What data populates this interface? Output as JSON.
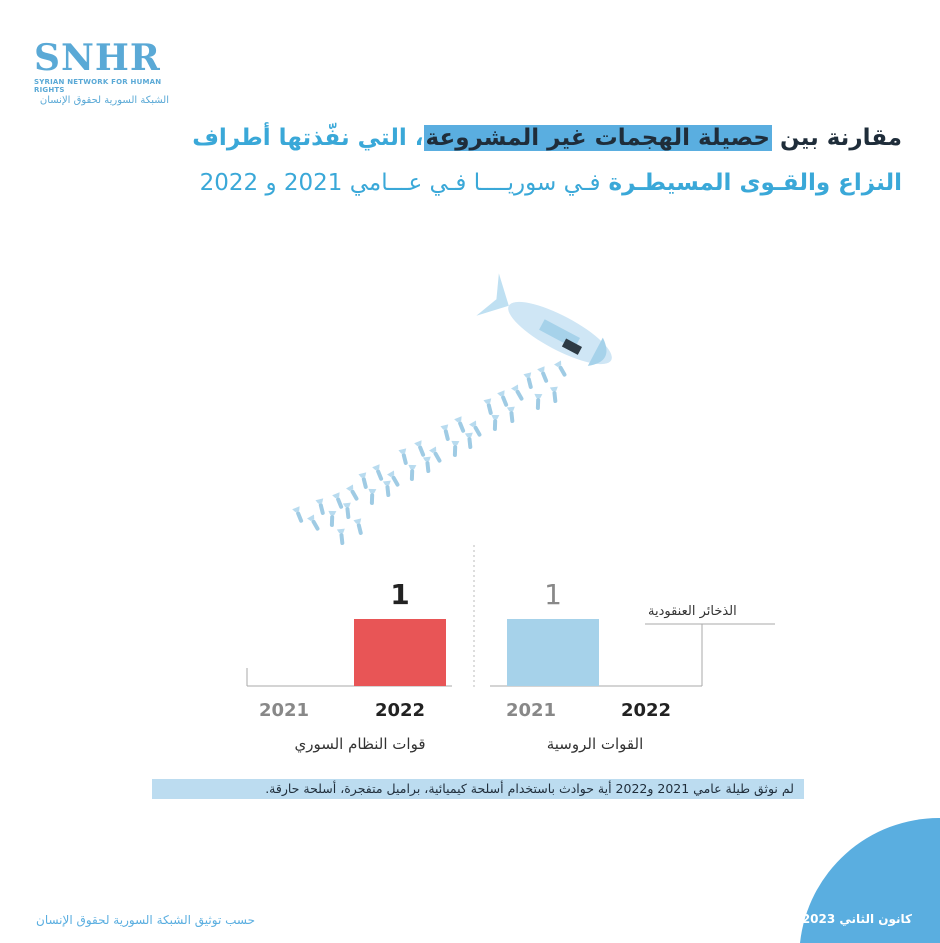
{
  "logo": {
    "mark": "SNHR",
    "en": "SYRIAN NETWORK FOR HUMAN RIGHTS",
    "ar": "الشبكة السورية لحقوق الإنسان"
  },
  "title": {
    "l1_a": "مقارنة بين ",
    "l1_hl": "حصيلة الهجمات غير المشروعة",
    "l1_b": "، التي نفّذتها أطراف",
    "l2_a": "النزاع والقـوى المسيطـرة ",
    "l2_b": "فـي سوريــــا فـي عـــامي 2021 و 2022"
  },
  "chart_data": {
    "type": "bar",
    "series": [
      {
        "name": "الذخائر العنقودية",
        "values": [
          0,
          1,
          1,
          0
        ]
      }
    ],
    "categories": [
      "2021",
      "2022",
      "2021",
      "2022"
    ],
    "groups": [
      {
        "label": "قوات النظام السوري",
        "years": [
          "2021",
          "2022"
        ],
        "values": [
          0,
          1
        ]
      },
      {
        "label": "القوات الروسية",
        "years": [
          "2021",
          "2022"
        ],
        "values": [
          1,
          0
        ]
      }
    ],
    "data_labels": [
      "1",
      "1"
    ],
    "ylim": [
      0,
      1.2
    ],
    "colors": {
      "regime": "#e85556",
      "russia": "#a6d2ea",
      "axis": "#999999"
    }
  },
  "note": "لم نوثق طيلة عامي 2021 و2022 أية حوادث باستخدام أسلحة  كيميائية، براميل متفجرة، أسلحة حارقة.",
  "footer": {
    "left": "حسب توثيق الشبكة السورية لحقوق الإنسان",
    "right": "كانون الثاني 2023"
  }
}
